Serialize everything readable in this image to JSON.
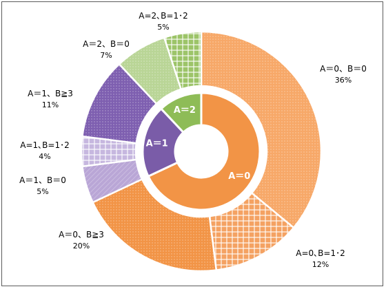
{
  "chart_data": {
    "type": "pie",
    "outer": [
      {
        "label": "A＝0、B＝0",
        "pct": "36%",
        "value": 36,
        "color": "#f7a868",
        "group": "A0"
      },
      {
        "label": "A=0､B=1･2",
        "pct": "12%",
        "value": 12,
        "color": "#f4a262",
        "group": "A0"
      },
      {
        "label": "A＝0、B≧3",
        "pct": "20%",
        "value": 20,
        "color": "#f29446",
        "group": "A0"
      },
      {
        "label": "A＝1、B＝0",
        "pct": "5%",
        "value": 5,
        "color": "#b9a6d6",
        "group": "A1"
      },
      {
        "label": "A=1､B=1･2",
        "pct": "4%",
        "value": 4,
        "color": "#c6b7df",
        "group": "A1"
      },
      {
        "label": "A＝1、B≧3",
        "pct": "11%",
        "value": 11,
        "color": "#7e5fb0",
        "group": "A1"
      },
      {
        "label": "A＝2、B＝0",
        "pct": "7%",
        "value": 7,
        "color": "#b9d596",
        "group": "A2"
      },
      {
        "label": "A=2､B=1･2",
        "pct": "5%",
        "value": 5,
        "color": "#9cc468",
        "group": "A2"
      }
    ],
    "inner": [
      {
        "label": "A＝0",
        "value": 68,
        "color": "#f29446"
      },
      {
        "label": "A＝1",
        "value": 20,
        "color": "#7a5ca8"
      },
      {
        "label": "A＝2",
        "value": 12,
        "color": "#8ebc57"
      }
    ],
    "start_angle_deg": 0,
    "direction": "clockwise"
  }
}
